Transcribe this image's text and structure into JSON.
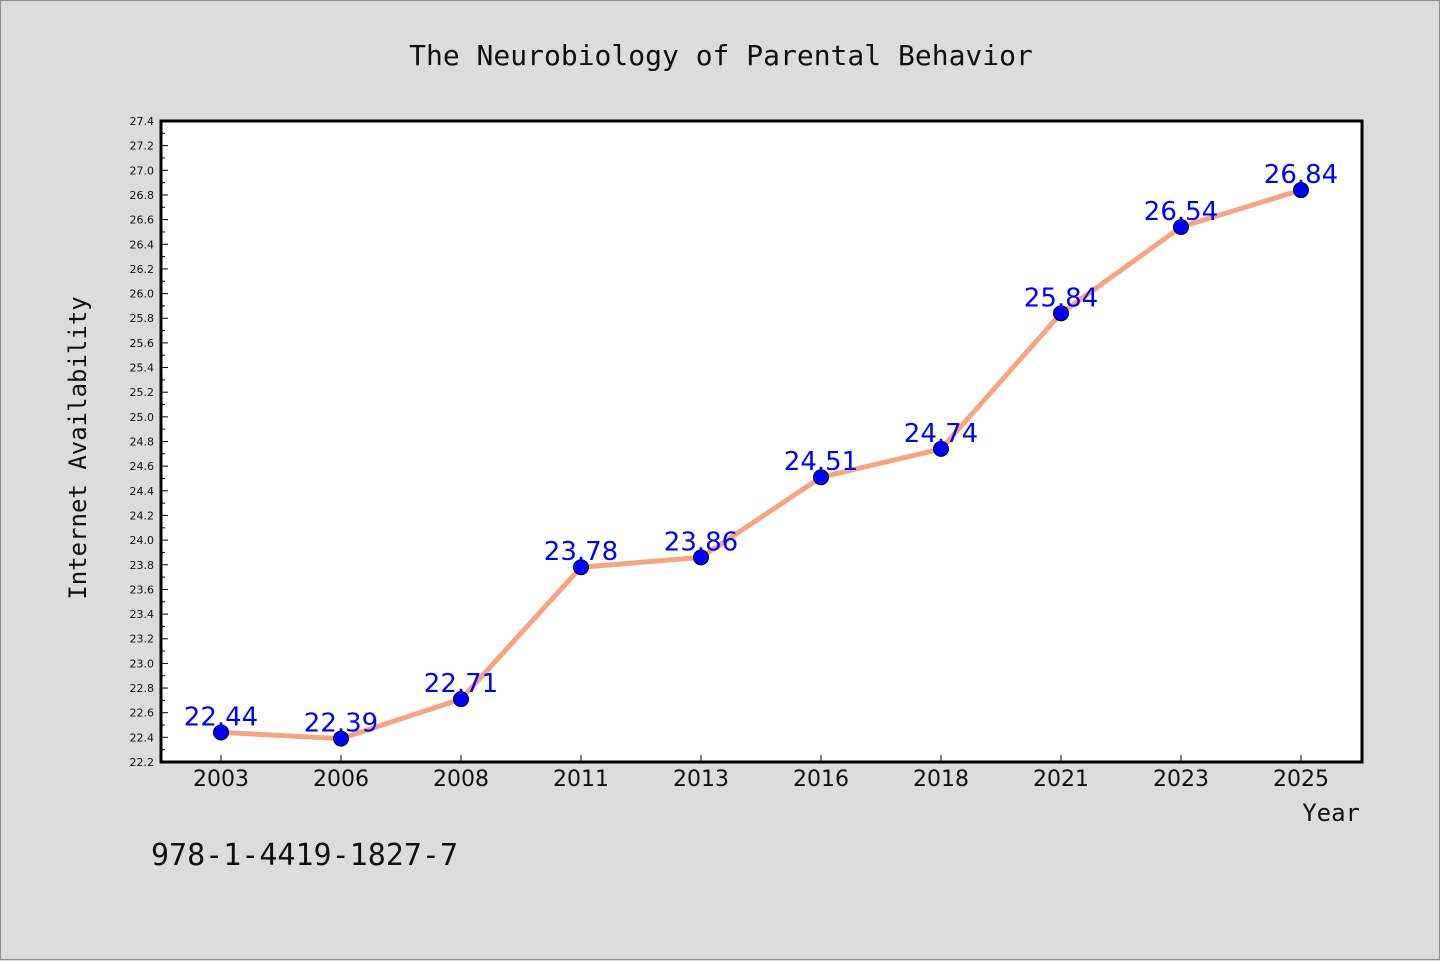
{
  "chart_data": {
    "type": "line",
    "title": "The Neurobiology of Parental Behavior",
    "xlabel": "Year",
    "ylabel": "Internet Availability",
    "categories": [
      "2003",
      "2006",
      "2008",
      "2011",
      "2013",
      "2016",
      "2018",
      "2021",
      "2023",
      "2025"
    ],
    "series": [
      {
        "values": [
          22.44,
          22.39,
          22.71,
          23.78,
          23.86,
          24.51,
          24.74,
          25.84,
          26.54,
          26.84
        ],
        "data_labels": [
          "22.44",
          "22.39",
          "22.71",
          "23.78",
          "23.86",
          "24.51",
          "24.74",
          "25.84",
          "26.54",
          "26.84"
        ]
      }
    ],
    "ylim": [
      22.2,
      27.4
    ],
    "yticks": [
      "22.2",
      "22.4",
      "22.6",
      "22.8",
      "23.0",
      "23.2",
      "23.4",
      "23.6",
      "23.8",
      "24.0",
      "24.2",
      "24.4",
      "24.6",
      "24.8",
      "25.0",
      "25.2",
      "25.4",
      "25.6",
      "25.8",
      "26.0",
      "26.2",
      "26.4",
      "26.6",
      "26.8",
      "27.0",
      "27.2",
      "27.4"
    ],
    "grid": false,
    "line_color": "#f4a582",
    "marker_color": "#0000ff",
    "label_color": "#0000ff"
  },
  "footer": {
    "isbn": "978-1-4419-1827-7"
  }
}
